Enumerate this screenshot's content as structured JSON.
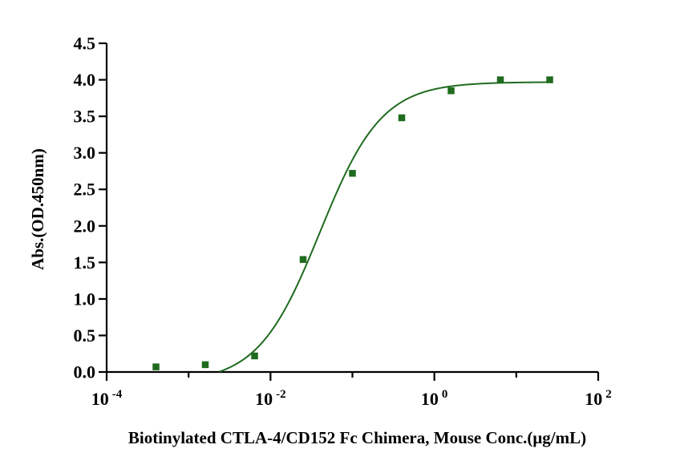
{
  "chart_data": {
    "type": "scatter",
    "xlabel": "Biotinylated CTLA-4/CD152 Fc Chimera, Mouse  Conc.(μg/mL)",
    "ylabel": "Abs.(OD.450nm)",
    "x_scale": "log",
    "xlim": [
      0.0001,
      100
    ],
    "ylim": [
      0,
      4.5
    ],
    "x_ticks": [
      {
        "value": 0.0001,
        "base": "10",
        "exp": "-4"
      },
      {
        "value": 0.01,
        "base": "10",
        "exp": "-2"
      },
      {
        "value": 1,
        "base": "10",
        "exp": "0"
      },
      {
        "value": 100,
        "base": "10",
        "exp": "2"
      }
    ],
    "y_ticks": [
      "0.0",
      "0.5",
      "1.0",
      "1.5",
      "2.0",
      "2.5",
      "3.0",
      "3.5",
      "4.0",
      "4.5"
    ],
    "series": [
      {
        "marker": "square",
        "color": "#1f6b1f",
        "points": [
          {
            "x": 0.0004,
            "y": 0.07
          },
          {
            "x": 0.0016,
            "y": 0.1
          },
          {
            "x": 0.0064,
            "y": 0.22
          },
          {
            "x": 0.025,
            "y": 1.54
          },
          {
            "x": 0.1,
            "y": 2.72
          },
          {
            "x": 0.4,
            "y": 3.48
          },
          {
            "x": 1.6,
            "y": 3.85
          },
          {
            "x": 6.4,
            "y": 4.0
          },
          {
            "x": 25.6,
            "y": 4.0
          }
        ]
      }
    ],
    "fit_curve": {
      "color": "#1f6b1f",
      "model": "4PL",
      "bottom": -0.15,
      "top": 3.97,
      "ec50": 0.04,
      "hill": 1.15,
      "x_range": [
        0.0006,
        25.6
      ]
    },
    "grid": false,
    "legend": "none"
  }
}
